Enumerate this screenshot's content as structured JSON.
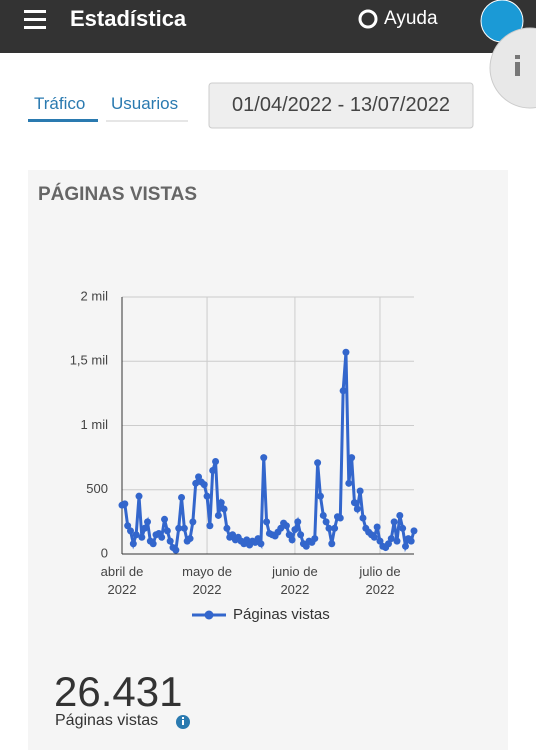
{
  "header": {
    "title": "Estadística",
    "help": "Ayuda"
  },
  "tabs": [
    "Tráfico",
    "Usuarios"
  ],
  "date_range": "01/04/2022 - 13/07/2022",
  "card_title": "PÁGINAS VISTAS",
  "chart_data": {
    "type": "line",
    "categories": [
      "abril de 2022",
      null,
      null,
      null,
      null,
      null,
      null,
      null,
      null,
      null,
      null,
      null,
      null,
      null,
      null,
      null,
      null,
      null,
      null,
      null,
      null,
      null,
      null,
      null,
      null,
      null,
      null,
      null,
      null,
      null,
      "mayo de 2022",
      null,
      null,
      null,
      null,
      null,
      null,
      null,
      null,
      null,
      null,
      null,
      null,
      null,
      null,
      null,
      null,
      null,
      null,
      null,
      null,
      null,
      null,
      null,
      null,
      null,
      null,
      null,
      null,
      null,
      null,
      "junio de 2022",
      null,
      null,
      null,
      null,
      null,
      null,
      null,
      null,
      null,
      null,
      null,
      null,
      null,
      null,
      null,
      null,
      null,
      null,
      null,
      null,
      null,
      null,
      null,
      null,
      null,
      null,
      null,
      null,
      null,
      "julio de 2022",
      null,
      null,
      null,
      null,
      null,
      null,
      null,
      null,
      null,
      null,
      null,
      null
    ],
    "series": [
      {
        "name": "Páginas vistas",
        "color": "#3366cc",
        "values": [
          380,
          390,
          220,
          180,
          80,
          150,
          450,
          130,
          200,
          250,
          100,
          80,
          150,
          160,
          130,
          270,
          180,
          100,
          50,
          30,
          200,
          440,
          200,
          100,
          120,
          250,
          550,
          600,
          560,
          540,
          450,
          220,
          650,
          720,
          300,
          400,
          350,
          200,
          130,
          150,
          110,
          130,
          100,
          80,
          110,
          70,
          100,
          90,
          120,
          80,
          750,
          250,
          160,
          150,
          140,
          170,
          200,
          240,
          220,
          150,
          110,
          190,
          250,
          150,
          80,
          60,
          100,
          90,
          120,
          710,
          450,
          300,
          250,
          200,
          80,
          200,
          290,
          280,
          1270,
          1570,
          550,
          750,
          400,
          350,
          490,
          280,
          200,
          170,
          150,
          130,
          210,
          100,
          60,
          50,
          80,
          120,
          250,
          100,
          300,
          200,
          60,
          120,
          100,
          180
        ]
      }
    ],
    "ylim": [
      0,
      2000
    ],
    "yticks": [
      0,
      500,
      {
        "value": 1000,
        "label": "1 mil"
      },
      {
        "value": 1500,
        "label": "1,5 mil"
      },
      {
        "value": 2000,
        "label": "2 mil"
      }
    ],
    "grid": true,
    "legend": "bottom"
  },
  "summary": {
    "value": "26.431",
    "label": "Páginas vistas"
  }
}
